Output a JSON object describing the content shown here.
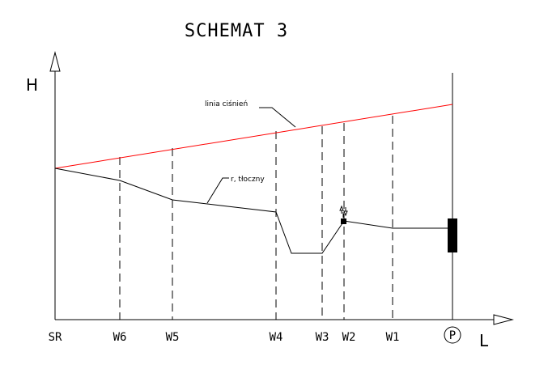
{
  "title": "SCHEMAT 3",
  "axes": {
    "y_label": "H",
    "x_label": "L"
  },
  "stations": [
    "SR",
    "W6",
    "W5",
    "W4",
    "W3",
    "W2",
    "W1",
    "P"
  ],
  "annotations": {
    "pressure_line": "linia ciśnień",
    "pipe_line": "r, tłoczny"
  },
  "colors": {
    "pressure_line": "#ff0000",
    "pipe_line": "#000000",
    "axes": "#000000"
  },
  "icons": [
    "air-valve-icon",
    "pump-icon"
  ]
}
